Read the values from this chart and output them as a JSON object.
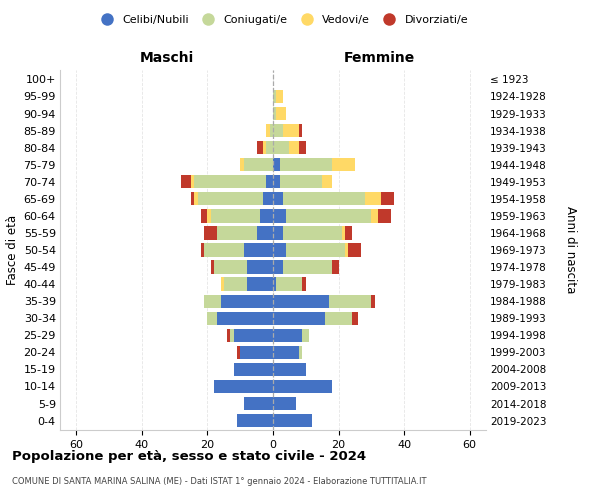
{
  "age_groups": [
    "0-4",
    "5-9",
    "10-14",
    "15-19",
    "20-24",
    "25-29",
    "30-34",
    "35-39",
    "40-44",
    "45-49",
    "50-54",
    "55-59",
    "60-64",
    "65-69",
    "70-74",
    "75-79",
    "80-84",
    "85-89",
    "90-94",
    "95-99",
    "100+"
  ],
  "birth_years": [
    "2019-2023",
    "2014-2018",
    "2009-2013",
    "2004-2008",
    "1999-2003",
    "1994-1998",
    "1989-1993",
    "1984-1988",
    "1979-1983",
    "1974-1978",
    "1969-1973",
    "1964-1968",
    "1959-1963",
    "1954-1958",
    "1949-1953",
    "1944-1948",
    "1939-1943",
    "1934-1938",
    "1929-1933",
    "1924-1928",
    "≤ 1923"
  ],
  "male": {
    "celibi": [
      11,
      9,
      18,
      12,
      10,
      12,
      17,
      16,
      8,
      8,
      9,
      5,
      4,
      3,
      2,
      0,
      0,
      0,
      0,
      0,
      0
    ],
    "coniugati": [
      0,
      0,
      0,
      0,
      0,
      1,
      3,
      5,
      7,
      10,
      12,
      12,
      15,
      20,
      22,
      9,
      2,
      1,
      0,
      0,
      0
    ],
    "vedovi": [
      0,
      0,
      0,
      0,
      0,
      0,
      0,
      0,
      1,
      0,
      0,
      0,
      1,
      1,
      1,
      1,
      1,
      1,
      0,
      0,
      0
    ],
    "divorziati": [
      0,
      0,
      0,
      0,
      1,
      1,
      0,
      0,
      0,
      1,
      1,
      4,
      2,
      1,
      3,
      0,
      2,
      0,
      0,
      0,
      0
    ]
  },
  "female": {
    "nubili": [
      12,
      7,
      18,
      10,
      8,
      9,
      16,
      17,
      1,
      3,
      4,
      3,
      4,
      3,
      2,
      2,
      0,
      0,
      0,
      0,
      0
    ],
    "coniugate": [
      0,
      0,
      0,
      0,
      1,
      2,
      8,
      13,
      8,
      15,
      18,
      18,
      26,
      25,
      13,
      16,
      5,
      3,
      1,
      1,
      0
    ],
    "vedove": [
      0,
      0,
      0,
      0,
      0,
      0,
      0,
      0,
      0,
      0,
      1,
      1,
      2,
      5,
      3,
      7,
      3,
      5,
      3,
      2,
      0
    ],
    "divorziate": [
      0,
      0,
      0,
      0,
      0,
      0,
      2,
      1,
      1,
      2,
      4,
      2,
      4,
      4,
      0,
      0,
      2,
      1,
      0,
      0,
      0
    ]
  },
  "colors": {
    "celibi": "#4472C4",
    "coniugati": "#C5D89A",
    "vedovi": "#FFD966",
    "divorziati": "#C0392B"
  },
  "xlim": 65,
  "xticks": [
    -60,
    -40,
    -20,
    0,
    20,
    40,
    60
  ],
  "title_main": "Popolazione per età, sesso e stato civile - 2024",
  "title_sub": "COMUNE DI SANTA MARINA SALINA (ME) - Dati ISTAT 1° gennaio 2024 - Elaborazione TUTTITALIA.IT",
  "ylabel_left": "Fasce di età",
  "ylabel_right": "Anni di nascita",
  "legend_labels": [
    "Celibi/Nubili",
    "Coniugati/e",
    "Vedovi/e",
    "Divorziati/e"
  ],
  "maschi_label": "Maschi",
  "femmine_label": "Femmine"
}
